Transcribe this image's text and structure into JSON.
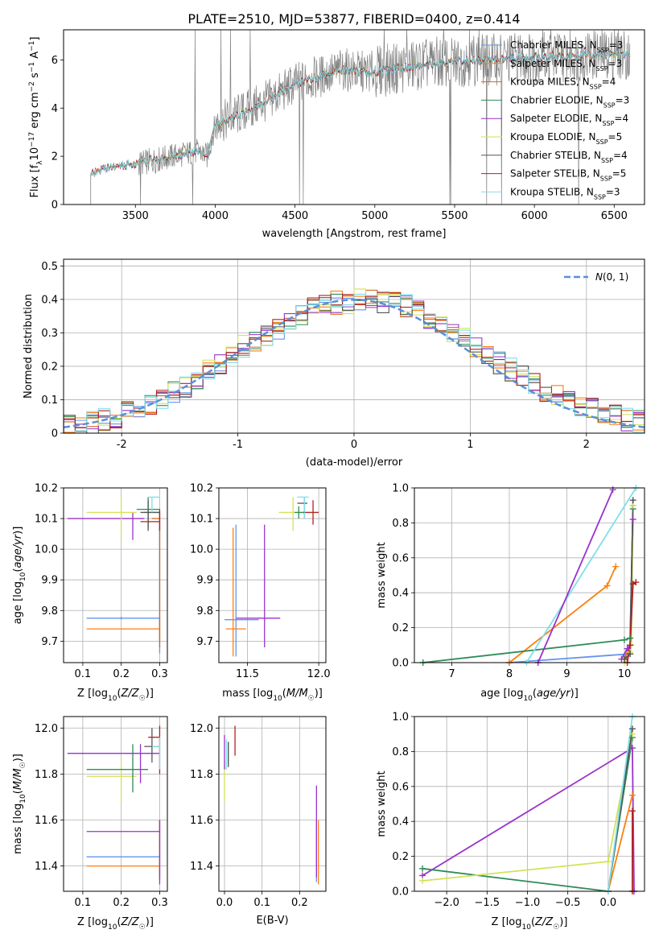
{
  "title": "PLATE=2510, MJD=53877, FIBERID=0400, z=0.414",
  "colors": [
    "#6495ed",
    "#ff7f0e",
    "#d2691e",
    "#2e8b57",
    "#9932cc",
    "#d4e157",
    "#555555",
    "#b22222",
    "#80deea"
  ],
  "chart_data": [
    {
      "id": "spectrum",
      "type": "line",
      "xlabel": "wavelength [Angstrom, rest frame]",
      "ylabel": "Flux [f_λ10^-17 erg cm^-2 s^-1 A^-1]",
      "xlim": [
        3050,
        6690
      ],
      "ylim": [
        0,
        7.25
      ],
      "xticks": [
        3500,
        4000,
        4500,
        5000,
        5500,
        6000,
        6500
      ],
      "yticks": [
        0,
        2,
        4,
        6
      ],
      "legend_position": "top-right",
      "legend": [
        "Chabrier MILES, N_SSP=3",
        "Salpeter MILES, N_SSP=3",
        "Kroupa MILES, N_SSP=4",
        "Chabrier ELODIE, N_SSP=3",
        "Salpeter ELODIE, N_SSP=4",
        "Kroupa ELODIE, N_SSP=5",
        "Chabrier STELIB, N_SSP=4",
        "Salpeter STELIB, N_SSP=5",
        "Kroupa STELIB, N_SSP=3"
      ],
      "data_x": [
        3220,
        3300,
        3400,
        3500,
        3600,
        3700,
        3800,
        3900,
        3950,
        4000,
        4100,
        4200,
        4300,
        4400,
        4500,
        4600,
        4700,
        4800,
        4900,
        5000,
        5100,
        5200,
        5300,
        5400,
        5500,
        5600,
        5700,
        5800,
        5900,
        6000,
        6100,
        6200,
        6300,
        6400,
        6500,
        6600
      ],
      "data_y": [
        1.2,
        1.5,
        1.6,
        1.7,
        1.8,
        1.95,
        2.1,
        2.2,
        2.0,
        3.3,
        3.6,
        3.9,
        4.2,
        4.6,
        5.0,
        5.2,
        5.4,
        5.6,
        5.5,
        5.5,
        5.6,
        5.7,
        5.8,
        5.9,
        5.9,
        6.0,
        6.0,
        6.05,
        6.1,
        6.1,
        6.15,
        6.15,
        6.2,
        6.2,
        6.25,
        6.25
      ]
    },
    {
      "id": "residuals",
      "type": "line",
      "xlabel": "(data-model)/error",
      "ylabel": "Normed distribution",
      "xlim": [
        -2.5,
        2.5
      ],
      "ylim": [
        0,
        0.52
      ],
      "xticks": [
        -2,
        -1,
        0,
        1,
        2
      ],
      "yticks": [
        0.0,
        0.1,
        0.2,
        0.3,
        0.4,
        0.5
      ],
      "legend_position": "top-right",
      "legend": [
        "N(0,1)"
      ],
      "bin_edges": [
        -2.5,
        -2.4,
        -2.3,
        -2.2,
        -2.1,
        -2.0,
        -1.9,
        -1.8,
        -1.7,
        -1.6,
        -1.5,
        -1.4,
        -1.3,
        -1.2,
        -1.1,
        -1.0,
        -0.9,
        -0.8,
        -0.7,
        -0.6,
        -0.5,
        -0.4,
        -0.3,
        -0.2,
        -0.1,
        0.0,
        0.1,
        0.2,
        0.3,
        0.4,
        0.5,
        0.6,
        0.7,
        0.8,
        0.9,
        1.0,
        1.1,
        1.2,
        1.3,
        1.4,
        1.5,
        1.6,
        1.7,
        1.8,
        1.9,
        2.0,
        2.1,
        2.2,
        2.3,
        2.4,
        2.5
      ],
      "hist_mean": [
        0.02,
        0.025,
        0.03,
        0.04,
        0.05,
        0.06,
        0.065,
        0.08,
        0.1,
        0.12,
        0.14,
        0.16,
        0.19,
        0.21,
        0.23,
        0.26,
        0.28,
        0.29,
        0.31,
        0.33,
        0.35,
        0.37,
        0.38,
        0.39,
        0.39,
        0.4,
        0.4,
        0.39,
        0.39,
        0.38,
        0.36,
        0.34,
        0.32,
        0.3,
        0.28,
        0.26,
        0.23,
        0.21,
        0.19,
        0.17,
        0.15,
        0.13,
        0.11,
        0.1,
        0.08,
        0.07,
        0.06,
        0.05,
        0.04,
        0.035
      ]
    },
    {
      "id": "age-vs-Z",
      "type": "scatter",
      "xlabel": "Z [log10(Z/Z☉)]",
      "ylabel": "age  [log10(age/yr)]",
      "xlim": [
        0.05,
        0.32
      ],
      "ylim": [
        9.63,
        10.2
      ],
      "xticks": [
        "0.1",
        "0.2",
        "0.3"
      ],
      "yticks": [
        "9.7",
        "9.8",
        "9.9",
        "10.0",
        "10.1",
        "10.2"
      ],
      "points": [
        {
          "x": 0.3,
          "y": 10.12,
          "xerr": [
            0.26,
            0.3
          ],
          "yerr": [
            9.66,
            10.12
          ],
          "c": 0
        },
        {
          "x": 0.3,
          "y": 9.74,
          "xerr": [
            0.11,
            0.3
          ],
          "yerr": [
            9.7,
            9.78
          ],
          "c": 1
        },
        {
          "x": 0.3,
          "y": 10.1,
          "xerr": [
            0.28,
            0.3
          ],
          "yerr": [
            9.68,
            10.12
          ],
          "c": 2
        },
        {
          "x": 0.27,
          "y": 10.13,
          "xerr": [
            0.24,
            0.3
          ],
          "yerr": [
            10.07,
            10.17
          ],
          "c": 3
        },
        {
          "x": 0.23,
          "y": 10.1,
          "xerr": [
            0.06,
            0.26
          ],
          "yerr": [
            10.03,
            10.12
          ],
          "c": 4
        },
        {
          "x": 0.2,
          "y": 10.12,
          "xerr": [
            0.11,
            0.24
          ],
          "yerr": [
            10.04,
            10.17
          ],
          "c": 5
        },
        {
          "x": 0.27,
          "y": 10.12,
          "xerr": [
            0.25,
            0.3
          ],
          "yerr": [
            10.06,
            10.16
          ],
          "c": 6
        },
        {
          "x": 0.3,
          "y": 10.09,
          "xerr": [
            0.25,
            0.3
          ],
          "yerr": [
            10.06,
            10.13
          ],
          "c": 7
        },
        {
          "x": 0.28,
          "y": 10.17,
          "xerr": [
            0.27,
            0.3
          ],
          "yerr": [
            10.12,
            10.17
          ],
          "c": 8
        },
        {
          "x": 0.2,
          "y": 9.775,
          "xerr": [
            0.11,
            0.3
          ],
          "yerr": [
            9.77,
            9.78
          ],
          "c": 0
        }
      ]
    },
    {
      "id": "age-vs-mass",
      "type": "scatter",
      "xlabel": "mass [log10(M/M☉)]",
      "ylabel": "",
      "xlim": [
        11.3,
        12.05
      ],
      "ylim": [
        9.63,
        10.2
      ],
      "xticks": [
        "11.5",
        "12.0"
      ],
      "yticks": [
        "9.7",
        "9.8",
        "9.9",
        "10.0",
        "10.1",
        "10.2"
      ],
      "points": [
        {
          "x": 11.42,
          "y": 9.77,
          "xerr": [
            11.34,
            11.58
          ],
          "yerr": [
            9.65,
            10.08
          ],
          "c": 0
        },
        {
          "x": 11.4,
          "y": 9.74,
          "xerr": [
            11.35,
            11.49
          ],
          "yerr": [
            9.65,
            10.07
          ],
          "c": 1
        },
        {
          "x": 11.62,
          "y": 9.775,
          "xerr": [
            11.42,
            11.73
          ],
          "yerr": [
            9.68,
            10.08
          ],
          "c": 4
        },
        {
          "x": 11.82,
          "y": 10.12,
          "xerr": [
            11.72,
            11.9
          ],
          "yerr": [
            10.06,
            10.17
          ],
          "c": 5
        },
        {
          "x": 11.9,
          "y": 10.15,
          "xerr": [
            11.85,
            11.92
          ],
          "yerr": [
            10.1,
            10.17
          ],
          "c": 6
        },
        {
          "x": 11.96,
          "y": 10.12,
          "xerr": [
            11.89,
            12.0
          ],
          "yerr": [
            10.08,
            10.16
          ],
          "c": 7
        },
        {
          "x": 11.9,
          "y": 10.17,
          "xerr": [
            11.85,
            11.93
          ],
          "yerr": [
            10.1,
            10.17
          ],
          "c": 8
        },
        {
          "x": 11.86,
          "y": 10.12,
          "xerr": [
            11.83,
            11.9
          ],
          "yerr": [
            10.1,
            10.14
          ],
          "c": 3
        }
      ]
    },
    {
      "id": "weight-vs-age",
      "type": "line",
      "xlabel": "age  [log10(age/yr)]",
      "ylabel": "mass weight",
      "xlim": [
        6.35,
        10.35
      ],
      "ylim": [
        0,
        1.0
      ],
      "xticks": [
        "7",
        "8",
        "9",
        "10"
      ],
      "yticks": [
        "0.0",
        "0.2",
        "0.4",
        "0.6",
        "0.8",
        "1.0"
      ],
      "series": [
        {
          "c": 0,
          "x": [
            8.0,
            10.1,
            10.15
          ],
          "y": [
            0.0,
            0.05,
            0.9
          ]
        },
        {
          "c": 1,
          "x": [
            8.0,
            9.7,
            9.85
          ],
          "y": [
            0.0,
            0.44,
            0.55
          ]
        },
        {
          "c": 2,
          "x": [
            10.0,
            10.1,
            10.15
          ],
          "y": [
            0.02,
            0.1,
            0.9
          ]
        },
        {
          "c": 3,
          "x": [
            6.5,
            10.0,
            10.1,
            10.15
          ],
          "y": [
            0.0,
            0.13,
            0.14,
            0.88
          ]
        },
        {
          "c": 4,
          "x": [
            9.95,
            10.05,
            10.1,
            10.15
          ],
          "y": [
            0.02,
            0.08,
            0.1,
            0.82
          ]
        },
        {
          "c": 5,
          "x": [
            10.0,
            10.1,
            10.12,
            10.15
          ],
          "y": [
            0.0,
            0.06,
            0.1,
            0.9
          ]
        },
        {
          "c": 6,
          "x": [
            10.0,
            10.1,
            10.15
          ],
          "y": [
            0.02,
            0.05,
            0.93
          ]
        },
        {
          "c": 7,
          "x": [
            10.05,
            10.1,
            10.15,
            10.2
          ],
          "y": [
            0.0,
            0.1,
            0.45,
            0.46
          ]
        },
        {
          "c": 8,
          "x": [
            8.3,
            10.2
          ],
          "y": [
            0.0,
            1.0
          ]
        },
        {
          "c": 4,
          "x": [
            8.5,
            9.8
          ],
          "y": [
            0.0,
            0.99
          ]
        }
      ]
    },
    {
      "id": "mass-vs-Z",
      "type": "scatter",
      "xlabel": "Z [log10(Z/Z☉)]",
      "ylabel": "mass [log10(M/M☉)]",
      "xlim": [
        0.05,
        0.32
      ],
      "ylim": [
        11.29,
        12.05
      ],
      "xticks": [
        "0.1",
        "0.2",
        "0.3"
      ],
      "yticks": [
        "11.4",
        "11.6",
        "11.8",
        "12.0"
      ],
      "points": [
        {
          "x": 0.3,
          "y": 11.44,
          "xerr": [
            0.11,
            0.3
          ],
          "yerr": [
            11.34,
            11.6
          ],
          "c": 0
        },
        {
          "x": 0.3,
          "y": 11.4,
          "xerr": [
            0.11,
            0.3
          ],
          "yerr": [
            11.35,
            11.6
          ],
          "c": 1
        },
        {
          "x": 0.3,
          "y": 11.55,
          "xerr": [
            0.11,
            0.3
          ],
          "yerr": [
            11.32,
            11.6
          ],
          "c": 4
        },
        {
          "x": 0.2,
          "y": 11.79,
          "xerr": [
            0.11,
            0.24
          ],
          "yerr": [
            11.67,
            11.86
          ],
          "c": 5
        },
        {
          "x": 0.23,
          "y": 11.82,
          "xerr": [
            0.11,
            0.27
          ],
          "yerr": [
            11.72,
            11.93
          ],
          "c": 3
        },
        {
          "x": 0.25,
          "y": 11.89,
          "xerr": [
            0.06,
            0.3
          ],
          "yerr": [
            11.76,
            11.93
          ],
          "c": 4
        },
        {
          "x": 0.28,
          "y": 11.92,
          "xerr": [
            0.26,
            0.3
          ],
          "yerr": [
            11.85,
            12.0
          ],
          "c": 6
        },
        {
          "x": 0.3,
          "y": 11.96,
          "xerr": [
            0.27,
            0.3
          ],
          "yerr": [
            11.8,
            12.01
          ],
          "c": 7
        },
        {
          "x": 0.3,
          "y": 11.92,
          "xerr": [
            0.28,
            0.3
          ],
          "yerr": [
            11.82,
            11.96
          ],
          "c": 8
        }
      ]
    },
    {
      "id": "mass-vs-EBV",
      "type": "scatter",
      "xlabel": "E(B-V)",
      "ylabel": "",
      "xlim": [
        -0.015,
        0.27
      ],
      "ylim": [
        11.29,
        12.05
      ],
      "xticks": [
        "0.0",
        "0.1",
        "0.2"
      ],
      "yticks": [
        "11.4",
        "11.6",
        "11.8",
        "12.0"
      ],
      "points": [
        {
          "x": 0.245,
          "y": 11.44,
          "yerr": [
            11.33,
            11.6
          ],
          "c": 0
        },
        {
          "x": 0.25,
          "y": 11.4,
          "yerr": [
            11.32,
            11.6
          ],
          "c": 1
        },
        {
          "x": 0.245,
          "y": 11.55,
          "yerr": [
            11.35,
            11.75
          ],
          "c": 4
        },
        {
          "x": 0.0,
          "y": 11.82,
          "yerr": [
            11.68,
            11.86
          ],
          "c": 5
        },
        {
          "x": 0.01,
          "y": 11.89,
          "yerr": [
            11.84,
            11.94
          ],
          "c": 3
        },
        {
          "x": 0.0,
          "y": 11.9,
          "yerr": [
            11.82,
            11.97
          ],
          "c": 4
        },
        {
          "x": 0.01,
          "y": 11.89,
          "yerr": [
            11.83,
            11.94
          ],
          "c": 6
        },
        {
          "x": 0.028,
          "y": 11.96,
          "yerr": [
            11.88,
            12.01
          ],
          "c": 7
        },
        {
          "x": 0.005,
          "y": 11.9,
          "yerr": [
            11.82,
            11.95
          ],
          "c": 8
        }
      ]
    },
    {
      "id": "weight-vs-Z",
      "type": "line",
      "xlabel": "Z [log10(Z/Z☉)]",
      "ylabel": "mass weight",
      "xlim": [
        -2.4,
        0.45
      ],
      "ylim": [
        0,
        1.0
      ],
      "xticks": [
        "−2.0",
        "−1.5",
        "−1.0",
        "−0.5",
        "0.0"
      ],
      "yticks": [
        "0.0",
        "0.2",
        "0.4",
        "0.6",
        "0.8",
        "1.0"
      ],
      "series": [
        {
          "c": 4,
          "x": [
            -2.3,
            0.3,
            0.32
          ],
          "y": [
            0.09,
            0.82,
            0.0
          ]
        },
        {
          "c": 3,
          "x": [
            -2.3,
            0.0,
            0.3
          ],
          "y": [
            0.13,
            0.0,
            0.88
          ]
        },
        {
          "c": 5,
          "x": [
            -2.3,
            0.0,
            0.3
          ],
          "y": [
            0.06,
            0.17,
            0.9
          ]
        },
        {
          "c": 1,
          "x": [
            0.0,
            0.3
          ],
          "y": [
            0.0,
            0.55
          ]
        },
        {
          "c": 6,
          "x": [
            0.0,
            0.3
          ],
          "y": [
            0.0,
            0.93
          ]
        },
        {
          "c": 8,
          "x": [
            0.0,
            0.3
          ],
          "y": [
            0.0,
            1.0
          ]
        },
        {
          "c": 7,
          "x": [
            0.3,
            0.3
          ],
          "y": [
            0.0,
            0.46
          ]
        }
      ]
    }
  ]
}
